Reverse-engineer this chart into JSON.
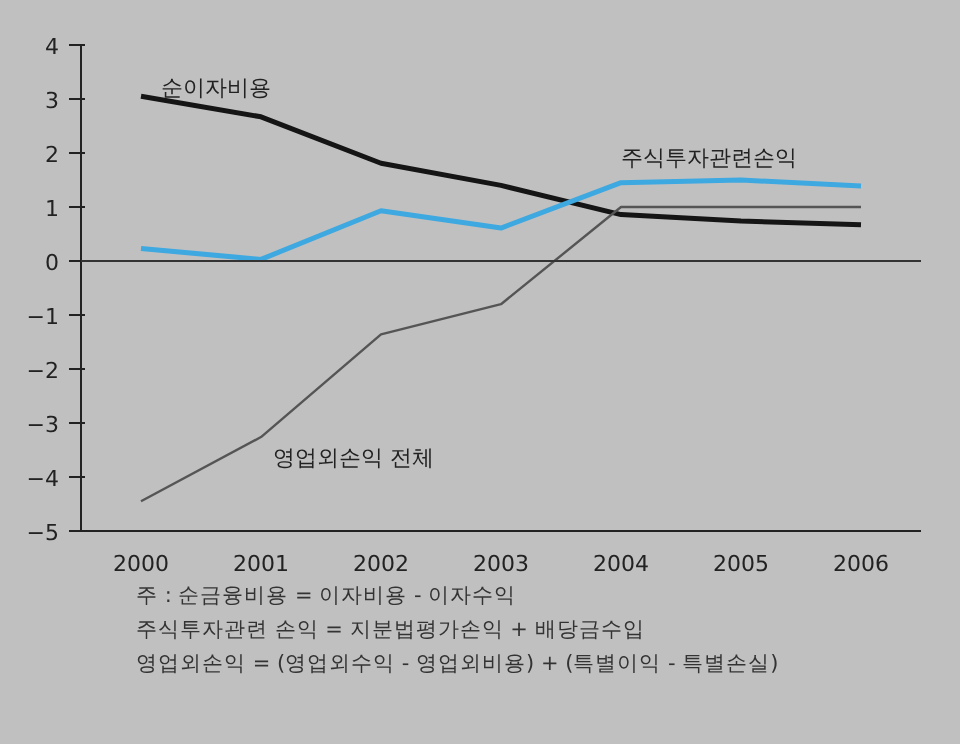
{
  "chart_data": {
    "type": "line",
    "categories": [
      "2000",
      "2001",
      "2002",
      "2003",
      "2004",
      "2005",
      "2006"
    ],
    "series": [
      {
        "name": "순이자비용",
        "color": "#151515",
        "values": [
          3.05,
          2.67,
          1.81,
          1.4,
          0.86,
          0.74,
          0.67
        ]
      },
      {
        "name": "주식투자관련손익",
        "color": "#3ea8e0",
        "values": [
          0.23,
          0.03,
          0.93,
          0.61,
          1.45,
          1.5,
          1.39
        ]
      },
      {
        "name": "영업외손익 전체",
        "color": "#555555",
        "values": [
          -4.45,
          -3.26,
          -1.36,
          -0.8,
          1.0,
          1.0,
          1.0
        ]
      }
    ],
    "ylim": [
      -5,
      4
    ],
    "yticks": [
      -5,
      -4,
      -3,
      -2,
      -1,
      0,
      1,
      2,
      3,
      4
    ],
    "grid": false,
    "marker": "none",
    "line_style": "solid",
    "ref_lines": [
      {
        "axis": "y",
        "value": 0,
        "color": "#333333"
      }
    ],
    "annotations": [
      "주 : 순금융비용 = 이자비용 - 이자수익",
      "주식투자관련 손익 = 지분법평가손익 + 배당금수입",
      "영업외손익 = (영업외수익 - 영업외비용) + (특별이익 - 특별손실)"
    ]
  }
}
